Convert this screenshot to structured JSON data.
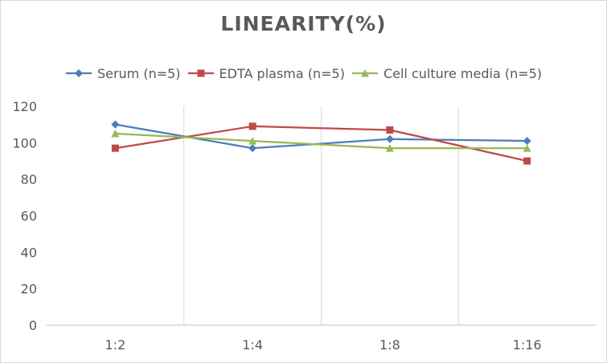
{
  "chart_data": {
    "type": "line",
    "title": "LINEARITY(%)",
    "xlabel": "",
    "ylabel": "",
    "categories": [
      "1:2",
      "1:4",
      "1:8",
      "1:16"
    ],
    "ylim": [
      0,
      120
    ],
    "yticks": [
      0,
      20,
      40,
      60,
      80,
      100,
      120
    ],
    "grid": "vertical",
    "legend": "top",
    "series": [
      {
        "name": "Serum (n=5)",
        "values": [
          110,
          97,
          102,
          101
        ],
        "color": "#4a7ebb",
        "marker": "diamond"
      },
      {
        "name": "EDTA plasma (n=5)",
        "values": [
          97,
          109,
          107,
          90
        ],
        "color": "#be4b48",
        "marker": "square"
      },
      {
        "name": "Cell culture media (n=5)",
        "values": [
          105,
          101,
          97,
          97
        ],
        "color": "#98b954",
        "marker": "triangle"
      }
    ]
  }
}
